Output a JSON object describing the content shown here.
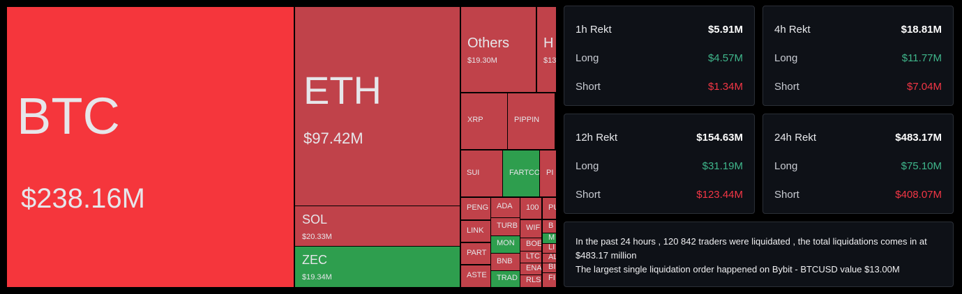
{
  "treemap": {
    "tiles": [
      {
        "label": "BTC",
        "value": "$238.16M"
      },
      {
        "label": "ETH",
        "value": "$97.42M"
      },
      {
        "label": "SOL",
        "value": "$20.33M"
      },
      {
        "label": "ZEC",
        "value": "$19.34M"
      },
      {
        "label": "Others",
        "value": "$19.30M"
      },
      {
        "label": "H",
        "value": "$13"
      },
      {
        "label": "XRP"
      },
      {
        "label": "PIPPIN"
      },
      {
        "label": "SUI"
      },
      {
        "label": "FARTCO"
      },
      {
        "label": "PI"
      },
      {
        "label": "PENG"
      },
      {
        "label": "LINK"
      },
      {
        "label": "PART"
      },
      {
        "label": "ASTE"
      },
      {
        "label": "ADA"
      },
      {
        "label": "TURB"
      },
      {
        "label": "MON"
      },
      {
        "label": "BNB"
      },
      {
        "label": "TRAD"
      },
      {
        "label": "100"
      },
      {
        "label": "WIF"
      },
      {
        "label": "BOE"
      },
      {
        "label": "LTC"
      },
      {
        "label": "ENA"
      },
      {
        "label": "RLS"
      },
      {
        "label": "PU"
      },
      {
        "label": "B"
      },
      {
        "label": "M"
      },
      {
        "label": "LI"
      },
      {
        "label": "AL"
      },
      {
        "label": "BI"
      },
      {
        "label": "FI"
      }
    ]
  },
  "cards": [
    {
      "title": "1h Rekt",
      "total": "$5.91M",
      "long_label": "Long",
      "long": "$4.57M",
      "short_label": "Short",
      "short": "$1.34M"
    },
    {
      "title": "4h Rekt",
      "total": "$18.81M",
      "long_label": "Long",
      "long": "$11.77M",
      "short_label": "Short",
      "short": "$7.04M"
    },
    {
      "title": "12h Rekt",
      "total": "$154.63M",
      "long_label": "Long",
      "long": "$31.19M",
      "short_label": "Short",
      "short": "$123.44M"
    },
    {
      "title": "24h Rekt",
      "total": "$483.17M",
      "long_label": "Long",
      "long": "$75.10M",
      "short_label": "Short",
      "short": "$408.07M"
    }
  ],
  "summary": {
    "lines": [
      "In the past 24 hours , 120 842 traders were liquidated , the total liquidations comes in at $483.17 million",
      "The largest single liquidation order happened on Bybit - BTCUSD value $13.00M"
    ]
  }
}
